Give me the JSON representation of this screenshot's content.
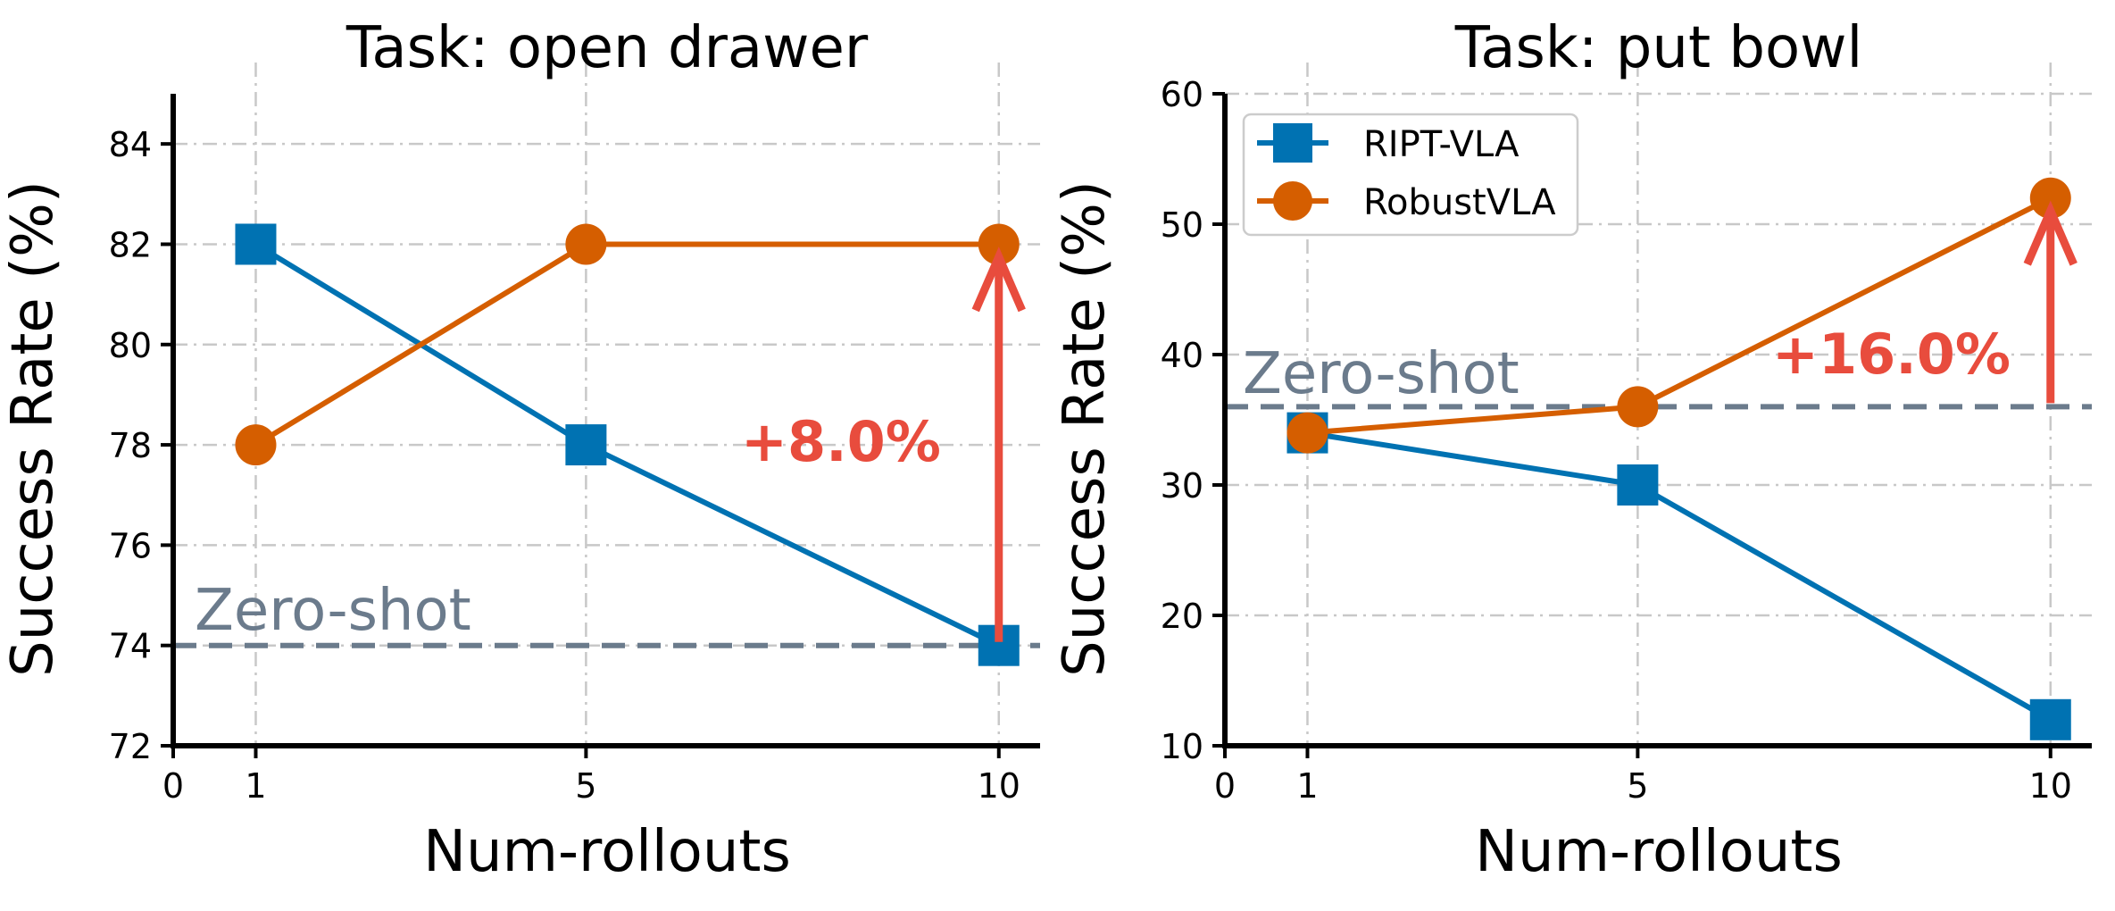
{
  "chart_data": [
    {
      "type": "line",
      "title": "Task: open drawer",
      "xlabel": "Num-rollouts",
      "ylabel": "Success Rate (%)",
      "x": [
        1,
        5,
        10
      ],
      "xticks": [
        "0",
        "1",
        "5",
        "10"
      ],
      "xtick_values": [
        0,
        1,
        5,
        10
      ],
      "xlim": [
        0,
        10.5
      ],
      "ylim": [
        72,
        85
      ],
      "yticks": [
        72,
        74,
        76,
        78,
        80,
        82,
        84
      ],
      "grid": true,
      "series": [
        {
          "name": "RIPT-VLA",
          "values": [
            82,
            78,
            74
          ],
          "color": "#0072b2",
          "marker": "square"
        },
        {
          "name": "RobustVLA",
          "values": [
            78,
            82,
            82
          ],
          "color": "#d55e00",
          "marker": "circle"
        }
      ],
      "baseline": {
        "label": "Zero-shot",
        "value": 74,
        "color": "#6b7b8c"
      },
      "annotation": {
        "text": "+8.0%",
        "x": 10,
        "from": 74,
        "to": 82,
        "color": "#e84c3d"
      },
      "legend": null
    },
    {
      "type": "line",
      "title": "Task: put bowl",
      "xlabel": "Num-rollouts",
      "ylabel": "Success Rate (%)",
      "x": [
        1,
        5,
        10
      ],
      "xticks": [
        "0",
        "1",
        "5",
        "10"
      ],
      "xtick_values": [
        0,
        1,
        5,
        10
      ],
      "xlim": [
        0,
        10.5
      ],
      "ylim": [
        10,
        60
      ],
      "yticks": [
        10,
        20,
        30,
        40,
        50,
        60
      ],
      "grid": true,
      "series": [
        {
          "name": "RIPT-VLA",
          "values": [
            34,
            30,
            12
          ],
          "color": "#0072b2",
          "marker": "square"
        },
        {
          "name": "RobustVLA",
          "values": [
            34,
            36,
            52
          ],
          "color": "#d55e00",
          "marker": "circle"
        }
      ],
      "baseline": {
        "label": "Zero-shot",
        "value": 36,
        "color": "#6b7b8c"
      },
      "annotation": {
        "text": "+16.0%",
        "x": 10,
        "from": 36,
        "to": 52,
        "color": "#e84c3d"
      },
      "legend": "top-left"
    }
  ]
}
